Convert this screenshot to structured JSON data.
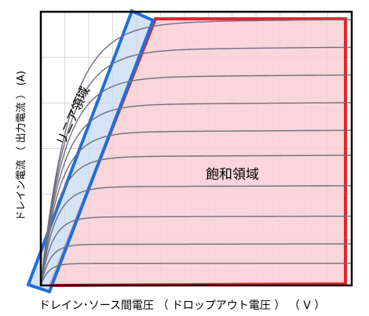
{
  "chart_data": {
    "type": "line",
    "title": "",
    "xlabel": "ドレイン･ソース間電圧 （ ドロップアウト電圧 ） （ V ）",
    "ylabel": "ドレイン電流 （ 出力電流 ） (A)",
    "annotations": {
      "linear_region": "リニア領域",
      "saturation_region": "飽和領域"
    },
    "grid": true,
    "legend": "none",
    "note": "qualitative curves; axes have no numeric ticks",
    "xlim": [
      0,
      10
    ],
    "ylim": [
      0,
      10
    ],
    "series": [
      {
        "saturation_level": 0.8
      },
      {
        "saturation_level": 1.5
      },
      {
        "saturation_level": 2.5
      },
      {
        "saturation_level": 3.6
      },
      {
        "saturation_level": 4.7
      },
      {
        "saturation_level": 5.6
      },
      {
        "saturation_level": 6.6
      },
      {
        "saturation_level": 7.6
      },
      {
        "saturation_level": 8.6
      },
      {
        "saturation_level": 9.6
      }
    ],
    "colors": {
      "curve": "#6f6f80",
      "linear_outline": "#1f6fd6",
      "linear_fill": "#c7daf2",
      "saturation_outline": "#e3252e",
      "saturation_fill": "#f7cfd3",
      "grid": "#d6d6d6"
    }
  }
}
